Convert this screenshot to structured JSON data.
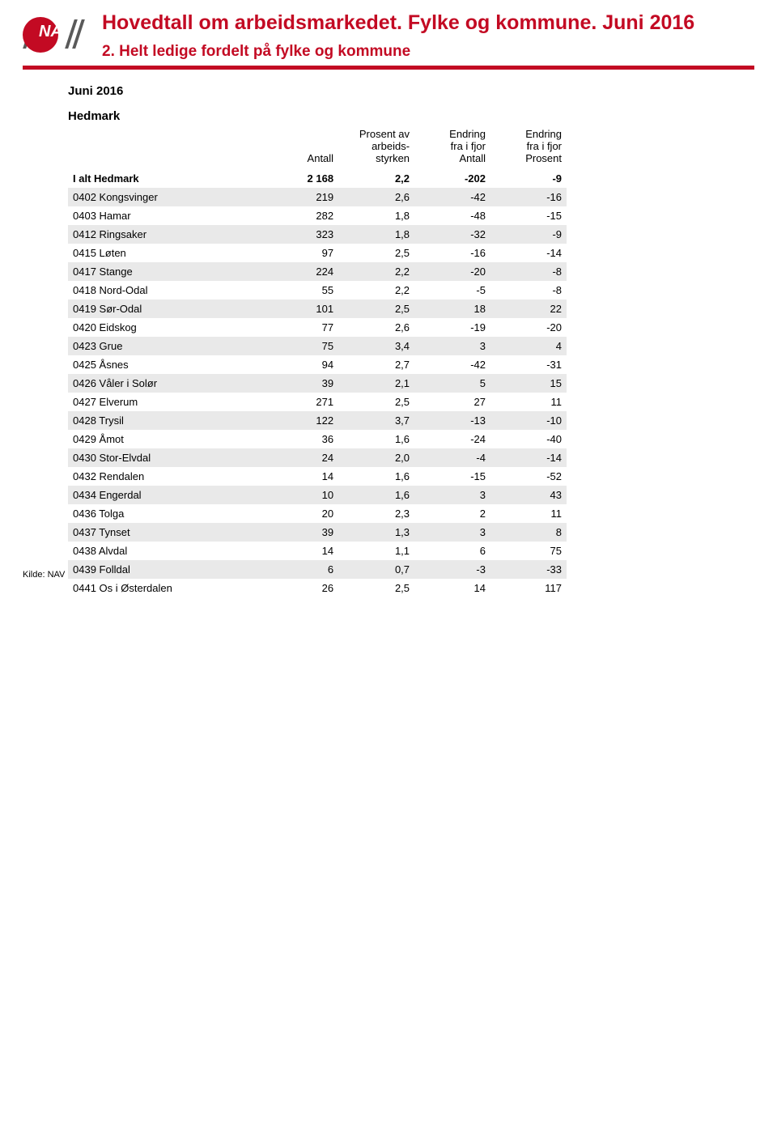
{
  "header": {
    "title_main": "Hovedtall om arbeidsmarkedet. Fylke og kommune. Juni 2016",
    "title_sub": "2. Helt ledige fordelt på fylke og kommune"
  },
  "meta": {
    "month_label": "Juni 2016",
    "region_label": "Hedmark"
  },
  "table": {
    "columns": {
      "label": "",
      "antall": "Antall",
      "prosent": "Prosent av\narbeids-\nstyrken",
      "endring_antall": "Endring\nfra i fjor\nAntall",
      "endring_prosent": "Endring\nfra i fjor\nProsent"
    },
    "col_widths": {
      "label": 230,
      "num": 96
    },
    "row_stripe_color": "#e9e9e9",
    "total": {
      "label": "I alt Hedmark",
      "antall": "2 168",
      "prosent": "2,2",
      "e_antall": "-202",
      "e_prosent": "-9"
    },
    "rows": [
      {
        "label": "0402 Kongsvinger",
        "antall": "219",
        "prosent": "2,6",
        "e_antall": "-42",
        "e_prosent": "-16"
      },
      {
        "label": "0403 Hamar",
        "antall": "282",
        "prosent": "1,8",
        "e_antall": "-48",
        "e_prosent": "-15"
      },
      {
        "label": "0412 Ringsaker",
        "antall": "323",
        "prosent": "1,8",
        "e_antall": "-32",
        "e_prosent": "-9"
      },
      {
        "label": "0415 Løten",
        "antall": "97",
        "prosent": "2,5",
        "e_antall": "-16",
        "e_prosent": "-14"
      },
      {
        "label": "0417 Stange",
        "antall": "224",
        "prosent": "2,2",
        "e_antall": "-20",
        "e_prosent": "-8"
      },
      {
        "label": "0418 Nord-Odal",
        "antall": "55",
        "prosent": "2,2",
        "e_antall": "-5",
        "e_prosent": "-8"
      },
      {
        "label": "0419 Sør-Odal",
        "antall": "101",
        "prosent": "2,5",
        "e_antall": "18",
        "e_prosent": "22"
      },
      {
        "label": "0420 Eidskog",
        "antall": "77",
        "prosent": "2,6",
        "e_antall": "-19",
        "e_prosent": "-20"
      },
      {
        "label": "0423 Grue",
        "antall": "75",
        "prosent": "3,4",
        "e_antall": "3",
        "e_prosent": "4"
      },
      {
        "label": "0425 Åsnes",
        "antall": "94",
        "prosent": "2,7",
        "e_antall": "-42",
        "e_prosent": "-31"
      },
      {
        "label": "0426 Våler i Solør",
        "antall": "39",
        "prosent": "2,1",
        "e_antall": "5",
        "e_prosent": "15"
      },
      {
        "label": "0427 Elverum",
        "antall": "271",
        "prosent": "2,5",
        "e_antall": "27",
        "e_prosent": "11"
      },
      {
        "label": "0428 Trysil",
        "antall": "122",
        "prosent": "3,7",
        "e_antall": "-13",
        "e_prosent": "-10"
      },
      {
        "label": "0429 Åmot",
        "antall": "36",
        "prosent": "1,6",
        "e_antall": "-24",
        "e_prosent": "-40"
      },
      {
        "label": "0430 Stor-Elvdal",
        "antall": "24",
        "prosent": "2,0",
        "e_antall": "-4",
        "e_prosent": "-14"
      },
      {
        "label": "0432 Rendalen",
        "antall": "14",
        "prosent": "1,6",
        "e_antall": "-15",
        "e_prosent": "-52"
      },
      {
        "label": "0434 Engerdal",
        "antall": "10",
        "prosent": "1,6",
        "e_antall": "3",
        "e_prosent": "43"
      },
      {
        "label": "0436 Tolga",
        "antall": "20",
        "prosent": "2,3",
        "e_antall": "2",
        "e_prosent": "11"
      },
      {
        "label": "0437 Tynset",
        "antall": "39",
        "prosent": "1,3",
        "e_antall": "3",
        "e_prosent": "8"
      },
      {
        "label": "0438 Alvdal",
        "antall": "14",
        "prosent": "1,1",
        "e_antall": "6",
        "e_prosent": "75"
      },
      {
        "label": "0439 Folldal",
        "antall": "6",
        "prosent": "0,7",
        "e_antall": "-3",
        "e_prosent": "-33"
      },
      {
        "label": "0441 Os i Østerdalen",
        "antall": "26",
        "prosent": "2,5",
        "e_antall": "14",
        "e_prosent": "117"
      }
    ]
  },
  "footer": {
    "source": "Kilde: NAV"
  },
  "colors": {
    "accent": "#c30a23",
    "stripe": "#e9e9e9",
    "text": "#000000",
    "background": "#ffffff"
  }
}
